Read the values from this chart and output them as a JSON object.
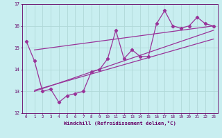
{
  "xlabel": "Windchill (Refroidissement éolien,°C)",
  "bg_color": "#c8eef0",
  "grid_color": "#b0d8d8",
  "line_color": "#993399",
  "spine_color": "#660066",
  "ylim": [
    12,
    17
  ],
  "xlim": [
    -0.5,
    23.5
  ],
  "yticks": [
    12,
    13,
    14,
    15,
    16,
    17
  ],
  "xticks": [
    0,
    1,
    2,
    3,
    4,
    5,
    6,
    7,
    8,
    9,
    10,
    11,
    12,
    13,
    14,
    15,
    16,
    17,
    18,
    19,
    20,
    21,
    22,
    23
  ],
  "series1_x": [
    0,
    1,
    2,
    3,
    4,
    5,
    6,
    7,
    8,
    9,
    10,
    11,
    12,
    13,
    14,
    15,
    16,
    17,
    18,
    19,
    20,
    21,
    22,
    23
  ],
  "series1_y": [
    15.3,
    14.4,
    13.0,
    13.1,
    12.5,
    12.8,
    12.9,
    13.0,
    13.9,
    14.0,
    14.5,
    15.8,
    14.5,
    14.9,
    14.6,
    14.6,
    16.1,
    16.7,
    16.0,
    15.9,
    16.0,
    16.4,
    16.1,
    16.0
  ],
  "trend1_x": [
    1,
    23
  ],
  "trend1_y": [
    14.9,
    16.0
  ],
  "trend2_x": [
    1,
    23
  ],
  "trend2_y": [
    13.0,
    15.8
  ],
  "trend3_x": [
    1,
    23
  ],
  "trend3_y": [
    13.05,
    15.4
  ]
}
